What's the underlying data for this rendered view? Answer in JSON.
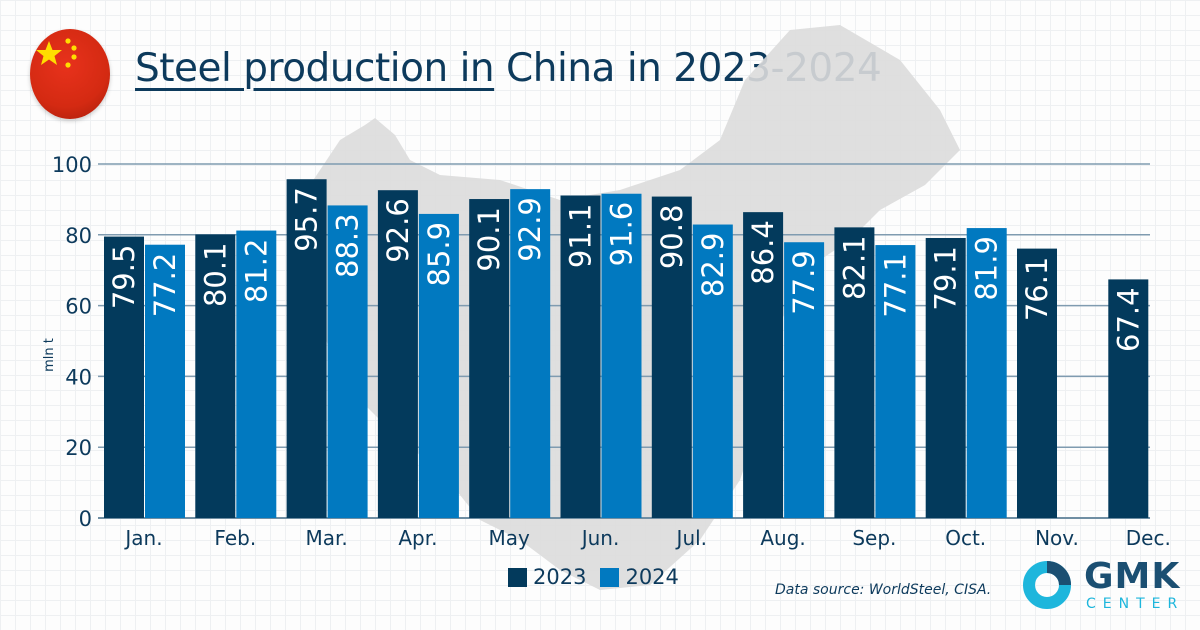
{
  "title": {
    "underlined": "Steel production in",
    "rest": " China in 2023-2024"
  },
  "source": "Data source: WorldSteel, CISA.",
  "logo": {
    "main": "GMK",
    "sub": "CENTER"
  },
  "colors": {
    "s2023": "#033a5c",
    "s2024": "#0179c0",
    "flag": "#de2910",
    "star": "#ffde00"
  },
  "chart_data": {
    "type": "bar",
    "categories": [
      "Jan.",
      "Feb.",
      "Mar.",
      "Apr.",
      "May",
      "Jun.",
      "Jul.",
      "Aug.",
      "Sep.",
      "Oct.",
      "Nov.",
      "Dec."
    ],
    "series": [
      {
        "name": "2023",
        "values": [
          79.5,
          80.1,
          95.7,
          92.6,
          90.1,
          91.1,
          90.8,
          86.4,
          82.1,
          79.1,
          76.1,
          67.4
        ]
      },
      {
        "name": "2024",
        "values": [
          77.2,
          81.2,
          88.3,
          85.9,
          92.9,
          91.6,
          82.9,
          77.9,
          77.1,
          81.9,
          null,
          null
        ]
      }
    ],
    "ylabel": "mln t",
    "ylim": [
      0,
      100
    ],
    "yticks": [
      0,
      20,
      40,
      60,
      80,
      100
    ],
    "grid": true,
    "legend": "bottom"
  }
}
